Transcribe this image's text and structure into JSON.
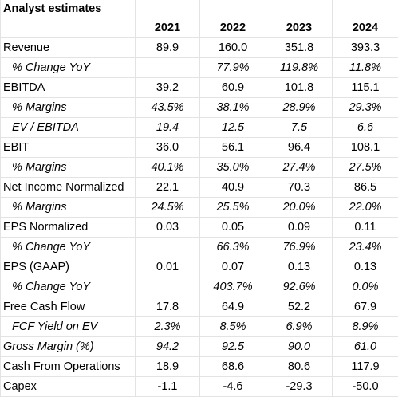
{
  "title": "Analyst estimates",
  "years": [
    "2021",
    "2022",
    "2023",
    "2024"
  ],
  "rows": [
    {
      "label": "Revenue",
      "values": [
        "89.9",
        "160.0",
        "351.8",
        "393.3"
      ],
      "sub": false,
      "italic": false
    },
    {
      "label": "% Change YoY",
      "values": [
        "",
        "77.9%",
        "119.8%",
        "11.8%"
      ],
      "sub": true,
      "italic": true
    },
    {
      "label": "EBITDA",
      "values": [
        "39.2",
        "60.9",
        "101.8",
        "115.1"
      ],
      "sub": false,
      "italic": false
    },
    {
      "label": "% Margins",
      "values": [
        "43.5%",
        "38.1%",
        "28.9%",
        "29.3%"
      ],
      "sub": true,
      "italic": true
    },
    {
      "label": "EV / EBITDA",
      "values": [
        "19.4",
        "12.5",
        "7.5",
        "6.6"
      ],
      "sub": true,
      "italic": false
    },
    {
      "label": "EBIT",
      "values": [
        "36.0",
        "56.1",
        "96.4",
        "108.1"
      ],
      "sub": false,
      "italic": false
    },
    {
      "label": "% Margins",
      "values": [
        "40.1%",
        "35.0%",
        "27.4%",
        "27.5%"
      ],
      "sub": true,
      "italic": true
    },
    {
      "label": "Net Income Normalized",
      "values": [
        "22.1",
        "40.9",
        "70.3",
        "86.5"
      ],
      "sub": false,
      "italic": false
    },
    {
      "label": "% Margins",
      "values": [
        "24.5%",
        "25.5%",
        "20.0%",
        "22.0%"
      ],
      "sub": true,
      "italic": true
    },
    {
      "label": "EPS Normalized",
      "values": [
        "0.03",
        "0.05",
        "0.09",
        "0.11"
      ],
      "sub": false,
      "italic": false
    },
    {
      "label": "% Change YoY",
      "values": [
        "",
        "66.3%",
        "76.9%",
        "23.4%"
      ],
      "sub": true,
      "italic": true
    },
    {
      "label": "EPS (GAAP)",
      "values": [
        "0.01",
        "0.07",
        "0.13",
        "0.13"
      ],
      "sub": false,
      "italic": false
    },
    {
      "label": "% Change YoY",
      "values": [
        "",
        "403.7%",
        "92.6%",
        "0.0%"
      ],
      "sub": true,
      "italic": true
    },
    {
      "label": "Free Cash Flow",
      "values": [
        "17.8",
        "64.9",
        "52.2",
        "67.9"
      ],
      "sub": false,
      "italic": false
    },
    {
      "label": "FCF Yield on EV",
      "values": [
        "2.3%",
        "8.5%",
        "6.9%",
        "8.9%"
      ],
      "sub": true,
      "italic": false
    },
    {
      "label": "Gross Margin (%)",
      "values": [
        "94.2",
        "92.5",
        "90.0",
        "61.0"
      ],
      "sub": false,
      "italic": true
    },
    {
      "label": "Cash From Operations",
      "values": [
        "18.9",
        "68.6",
        "80.6",
        "117.9"
      ],
      "sub": false,
      "italic": false
    },
    {
      "label": "Capex",
      "values": [
        "-1.1",
        "-4.6",
        "-29.3",
        "-50.0"
      ],
      "sub": false,
      "italic": false
    }
  ]
}
